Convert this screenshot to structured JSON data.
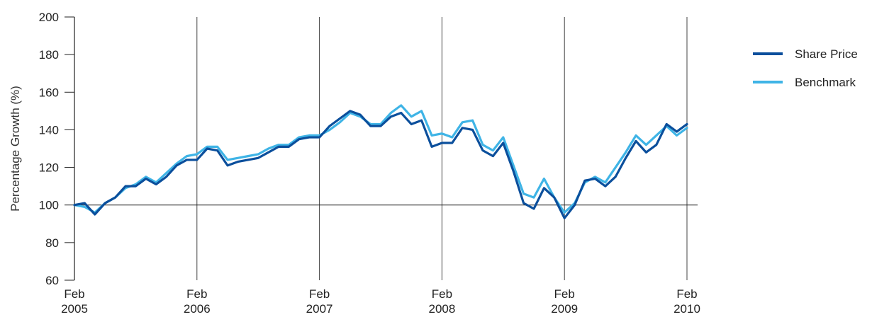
{
  "chart_data": {
    "type": "line",
    "ylabel": "Percentage Growth (%)",
    "ylim": [
      60,
      200
    ],
    "yticks": [
      "60",
      "80",
      "100",
      "120",
      "140",
      "160",
      "180",
      "200"
    ],
    "xlim": [
      0,
      60
    ],
    "xticks": [
      {
        "x": 0,
        "line1": "Feb",
        "line2": "2005"
      },
      {
        "x": 12,
        "line1": "Feb",
        "line2": "2006"
      },
      {
        "x": 24,
        "line1": "Feb",
        "line2": "2007"
      },
      {
        "x": 36,
        "line1": "Feb",
        "line2": "2008"
      },
      {
        "x": 48,
        "line1": "Feb",
        "line2": "2009"
      },
      {
        "x": 60,
        "line1": "Feb",
        "line2": "2010"
      }
    ],
    "baseline": 100,
    "grid": "vertical lines at each February",
    "legend_position": "right",
    "series": [
      {
        "name": "Share Price",
        "color": "#0b4f9c",
        "values": [
          100,
          101,
          95,
          101,
          104,
          110,
          110,
          114,
          111,
          115,
          121,
          124,
          124,
          130,
          129,
          121,
          123,
          124,
          125,
          128,
          131,
          131,
          135,
          136,
          136,
          142,
          146,
          150,
          148,
          142,
          142,
          147,
          149,
          143,
          145,
          131,
          133,
          133,
          141,
          140,
          129,
          126,
          133,
          118,
          101,
          98,
          109,
          104,
          93,
          100,
          113,
          114,
          110,
          115,
          125,
          134,
          128,
          132,
          143,
          139,
          143
        ]
      },
      {
        "name": "Benchmark",
        "color": "#3fb4e6",
        "values": [
          100,
          99,
          96,
          101,
          104,
          109,
          111,
          115,
          112,
          117,
          122,
          126,
          127,
          131,
          131,
          124,
          125,
          126,
          127,
          130,
          132,
          132,
          136,
          137,
          137,
          140,
          144,
          149,
          147,
          143,
          143,
          149,
          153,
          147,
          150,
          137,
          138,
          136,
          144,
          145,
          132,
          129,
          136,
          121,
          106,
          104,
          114,
          104,
          96,
          101,
          112,
          115,
          112,
          120,
          128,
          137,
          132,
          137,
          142,
          137,
          141
        ]
      }
    ]
  }
}
